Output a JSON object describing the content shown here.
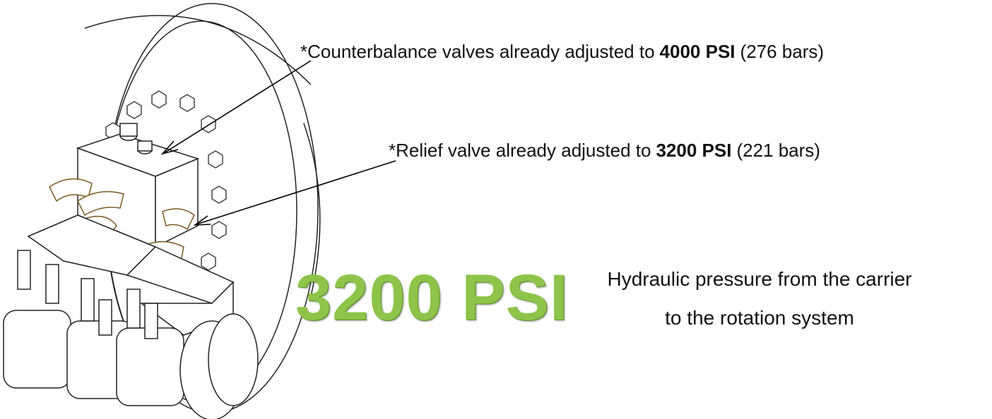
{
  "annotations": [
    {
      "prefix": "*Counterbalance valves already adjusted to",
      "emphasis": "4000 PSI",
      "suffix": "(276 bars)"
    },
    {
      "prefix": "*Relief valve already adjusted to",
      "emphasis": "3200 PSI",
      "suffix": "(221 bars)"
    }
  ],
  "pressure_label": "3200 PSI",
  "caption": [
    "Hydraulic pressure from the carrier",
    "to the rotation system"
  ]
}
